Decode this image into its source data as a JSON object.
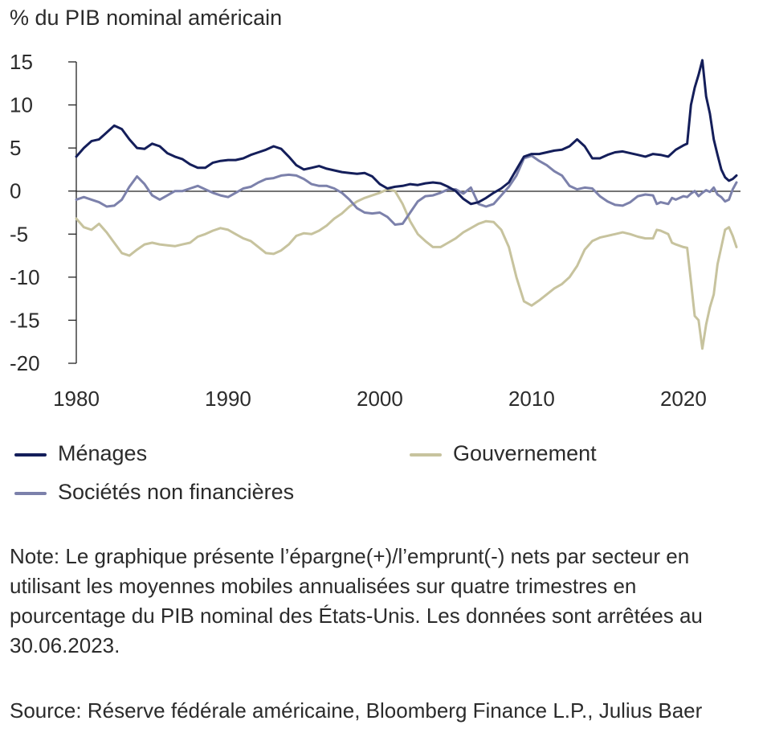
{
  "chart_data": {
    "type": "line",
    "ylabel": "% du PIB nominal américain",
    "ylim": [
      -20,
      15
    ],
    "xlim": [
      1980,
      2023.5
    ],
    "yticks": [
      "15",
      "10",
      "5",
      "0",
      "-5",
      "-10",
      "-15",
      "-20"
    ],
    "xticks": [
      "1980",
      "1990",
      "2000",
      "2010",
      "2020"
    ],
    "grid": false,
    "legend_position": "bottom",
    "series": [
      {
        "name": "Ménages",
        "color": "#141e5a",
        "points": [
          [
            1980,
            4.0
          ],
          [
            1980.5,
            5.0
          ],
          [
            1981,
            5.8
          ],
          [
            1981.5,
            6.0
          ],
          [
            1982,
            6.8
          ],
          [
            1982.5,
            7.6
          ],
          [
            1983,
            7.2
          ],
          [
            1983.5,
            6.0
          ],
          [
            1984,
            5.0
          ],
          [
            1984.5,
            4.9
          ],
          [
            1985,
            5.5
          ],
          [
            1985.5,
            5.2
          ],
          [
            1986,
            4.4
          ],
          [
            1986.5,
            4.0
          ],
          [
            1987,
            3.7
          ],
          [
            1987.5,
            3.1
          ],
          [
            1988,
            2.7
          ],
          [
            1988.5,
            2.7
          ],
          [
            1989,
            3.3
          ],
          [
            1989.5,
            3.5
          ],
          [
            1990,
            3.6
          ],
          [
            1990.5,
            3.6
          ],
          [
            1991,
            3.8
          ],
          [
            1991.5,
            4.2
          ],
          [
            1992,
            4.5
          ],
          [
            1992.5,
            4.8
          ],
          [
            1993,
            5.2
          ],
          [
            1993.5,
            4.9
          ],
          [
            1994,
            4.0
          ],
          [
            1994.5,
            3.0
          ],
          [
            1995,
            2.5
          ],
          [
            1995.5,
            2.7
          ],
          [
            1996,
            2.9
          ],
          [
            1996.5,
            2.6
          ],
          [
            1997,
            2.4
          ],
          [
            1997.5,
            2.2
          ],
          [
            1998,
            2.1
          ],
          [
            1998.5,
            2.0
          ],
          [
            1999,
            2.1
          ],
          [
            1999.5,
            1.7
          ],
          [
            2000,
            0.8
          ],
          [
            2000.5,
            0.3
          ],
          [
            2001,
            0.5
          ],
          [
            2001.5,
            0.6
          ],
          [
            2002,
            0.8
          ],
          [
            2002.5,
            0.7
          ],
          [
            2003,
            0.9
          ],
          [
            2003.5,
            1.0
          ],
          [
            2004,
            0.9
          ],
          [
            2004.5,
            0.5
          ],
          [
            2005,
            0.0
          ],
          [
            2005.5,
            -0.9
          ],
          [
            2006,
            -1.5
          ],
          [
            2006.5,
            -1.3
          ],
          [
            2007,
            -0.8
          ],
          [
            2007.5,
            -0.2
          ],
          [
            2008,
            0.3
          ],
          [
            2008.5,
            1.0
          ],
          [
            2009,
            2.5
          ],
          [
            2009.5,
            4.0
          ],
          [
            2010,
            4.3
          ],
          [
            2010.5,
            4.3
          ],
          [
            2011,
            4.5
          ],
          [
            2011.5,
            4.7
          ],
          [
            2012,
            4.8
          ],
          [
            2012.5,
            5.2
          ],
          [
            2013,
            6.0
          ],
          [
            2013.5,
            5.2
          ],
          [
            2014,
            3.8
          ],
          [
            2014.5,
            3.8
          ],
          [
            2015,
            4.2
          ],
          [
            2015.5,
            4.5
          ],
          [
            2016,
            4.6
          ],
          [
            2016.5,
            4.4
          ],
          [
            2017,
            4.2
          ],
          [
            2017.5,
            4.0
          ],
          [
            2018,
            4.3
          ],
          [
            2018.5,
            4.2
          ],
          [
            2019,
            4.0
          ],
          [
            2019.5,
            4.8
          ],
          [
            2020,
            5.3
          ],
          [
            2020.25,
            5.5
          ],
          [
            2020.5,
            10.0
          ],
          [
            2020.75,
            12.0
          ],
          [
            2021,
            13.5
          ],
          [
            2021.25,
            15.2
          ],
          [
            2021.5,
            11.0
          ],
          [
            2021.75,
            9.0
          ],
          [
            2022,
            6.0
          ],
          [
            2022.25,
            4.2
          ],
          [
            2022.5,
            2.5
          ],
          [
            2022.75,
            1.6
          ],
          [
            2023,
            1.2
          ],
          [
            2023.25,
            1.4
          ],
          [
            2023.5,
            1.8
          ]
        ]
      },
      {
        "name": "Gouvernement",
        "color": "#c7c39e",
        "points": [
          [
            1980,
            -3.2
          ],
          [
            1980.5,
            -4.2
          ],
          [
            1981,
            -4.5
          ],
          [
            1981.5,
            -3.8
          ],
          [
            1982,
            -4.8
          ],
          [
            1982.5,
            -6.0
          ],
          [
            1983,
            -7.2
          ],
          [
            1983.5,
            -7.5
          ],
          [
            1984,
            -6.8
          ],
          [
            1984.5,
            -6.2
          ],
          [
            1985,
            -6.0
          ],
          [
            1985.5,
            -6.2
          ],
          [
            1986,
            -6.3
          ],
          [
            1986.5,
            -6.4
          ],
          [
            1987,
            -6.2
          ],
          [
            1987.5,
            -6.0
          ],
          [
            1988,
            -5.3
          ],
          [
            1988.5,
            -5.0
          ],
          [
            1989,
            -4.6
          ],
          [
            1989.5,
            -4.3
          ],
          [
            1990,
            -4.5
          ],
          [
            1990.5,
            -5.0
          ],
          [
            1991,
            -5.5
          ],
          [
            1991.5,
            -5.8
          ],
          [
            1992,
            -6.5
          ],
          [
            1992.5,
            -7.2
          ],
          [
            1993,
            -7.3
          ],
          [
            1993.5,
            -6.9
          ],
          [
            1994,
            -6.2
          ],
          [
            1994.5,
            -5.2
          ],
          [
            1995,
            -4.9
          ],
          [
            1995.5,
            -5.0
          ],
          [
            1996,
            -4.6
          ],
          [
            1996.5,
            -4.0
          ],
          [
            1997,
            -3.2
          ],
          [
            1997.5,
            -2.6
          ],
          [
            1998,
            -1.8
          ],
          [
            1998.5,
            -1.2
          ],
          [
            1999,
            -0.8
          ],
          [
            1999.5,
            -0.5
          ],
          [
            2000,
            -0.2
          ],
          [
            2000.5,
            0.2
          ],
          [
            2001,
            0.0
          ],
          [
            2001.5,
            -1.5
          ],
          [
            2002,
            -3.5
          ],
          [
            2002.5,
            -5.0
          ],
          [
            2003,
            -5.8
          ],
          [
            2003.5,
            -6.5
          ],
          [
            2004,
            -6.5
          ],
          [
            2004.5,
            -6.0
          ],
          [
            2005,
            -5.5
          ],
          [
            2005.5,
            -4.8
          ],
          [
            2006,
            -4.3
          ],
          [
            2006.5,
            -3.8
          ],
          [
            2007,
            -3.5
          ],
          [
            2007.5,
            -3.6
          ],
          [
            2008,
            -4.5
          ],
          [
            2008.5,
            -6.5
          ],
          [
            2009,
            -10.0
          ],
          [
            2009.5,
            -12.8
          ],
          [
            2010,
            -13.3
          ],
          [
            2010.5,
            -12.7
          ],
          [
            2011,
            -12.0
          ],
          [
            2011.5,
            -11.3
          ],
          [
            2012,
            -10.8
          ],
          [
            2012.5,
            -10.0
          ],
          [
            2013,
            -8.7
          ],
          [
            2013.5,
            -6.8
          ],
          [
            2014,
            -5.8
          ],
          [
            2014.5,
            -5.4
          ],
          [
            2015,
            -5.2
          ],
          [
            2015.5,
            -5.0
          ],
          [
            2016,
            -4.8
          ],
          [
            2016.5,
            -5.0
          ],
          [
            2017,
            -5.3
          ],
          [
            2017.5,
            -5.5
          ],
          [
            2018,
            -5.5
          ],
          [
            2018.25,
            -4.5
          ],
          [
            2018.5,
            -4.6
          ],
          [
            2019,
            -5.0
          ],
          [
            2019.25,
            -6.0
          ],
          [
            2019.5,
            -6.2
          ],
          [
            2020,
            -6.5
          ],
          [
            2020.25,
            -6.6
          ],
          [
            2020.5,
            -10.5
          ],
          [
            2020.75,
            -14.5
          ],
          [
            2021,
            -15.0
          ],
          [
            2021.25,
            -18.3
          ],
          [
            2021.5,
            -15.5
          ],
          [
            2021.75,
            -13.5
          ],
          [
            2022,
            -12.0
          ],
          [
            2022.25,
            -8.5
          ],
          [
            2022.5,
            -6.5
          ],
          [
            2022.75,
            -4.5
          ],
          [
            2023,
            -4.2
          ],
          [
            2023.25,
            -5.2
          ],
          [
            2023.5,
            -6.5
          ]
        ]
      },
      {
        "name": "Sociétés non financières",
        "color": "#7c81ab",
        "points": [
          [
            1980,
            -1.0
          ],
          [
            1980.5,
            -0.7
          ],
          [
            1981,
            -1.0
          ],
          [
            1981.5,
            -1.3
          ],
          [
            1982,
            -1.8
          ],
          [
            1982.5,
            -1.7
          ],
          [
            1983,
            -1.0
          ],
          [
            1983.5,
            0.5
          ],
          [
            1984,
            1.7
          ],
          [
            1984.5,
            0.8
          ],
          [
            1985,
            -0.5
          ],
          [
            1985.5,
            -1.0
          ],
          [
            1986,
            -0.5
          ],
          [
            1986.5,
            0.0
          ],
          [
            1987,
            0.0
          ],
          [
            1987.5,
            0.3
          ],
          [
            1988,
            0.6
          ],
          [
            1988.5,
            0.2
          ],
          [
            1989,
            -0.2
          ],
          [
            1989.5,
            -0.5
          ],
          [
            1990,
            -0.7
          ],
          [
            1990.5,
            -0.2
          ],
          [
            1991,
            0.3
          ],
          [
            1991.5,
            0.5
          ],
          [
            1992,
            1.0
          ],
          [
            1992.5,
            1.4
          ],
          [
            1993,
            1.5
          ],
          [
            1993.5,
            1.8
          ],
          [
            1994,
            1.9
          ],
          [
            1994.5,
            1.8
          ],
          [
            1995,
            1.4
          ],
          [
            1995.5,
            0.8
          ],
          [
            1996,
            0.6
          ],
          [
            1996.5,
            0.6
          ],
          [
            1997,
            0.3
          ],
          [
            1997.5,
            -0.2
          ],
          [
            1998,
            -1.0
          ],
          [
            1998.5,
            -2.0
          ],
          [
            1999,
            -2.5
          ],
          [
            1999.5,
            -2.6
          ],
          [
            2000,
            -2.5
          ],
          [
            2000.5,
            -3.0
          ],
          [
            2001,
            -3.9
          ],
          [
            2001.5,
            -3.8
          ],
          [
            2002,
            -2.5
          ],
          [
            2002.5,
            -1.2
          ],
          [
            2003,
            -0.6
          ],
          [
            2003.5,
            -0.5
          ],
          [
            2004,
            -0.2
          ],
          [
            2004.5,
            0.2
          ],
          [
            2005,
            0.2
          ],
          [
            2005.5,
            -0.3
          ],
          [
            2006,
            0.4
          ],
          [
            2006.5,
            -1.5
          ],
          [
            2007,
            -1.8
          ],
          [
            2007.5,
            -1.5
          ],
          [
            2008,
            -0.5
          ],
          [
            2008.5,
            0.5
          ],
          [
            2009,
            1.8
          ],
          [
            2009.5,
            3.8
          ],
          [
            2010,
            4.1
          ],
          [
            2010.5,
            3.5
          ],
          [
            2011,
            3.0
          ],
          [
            2011.5,
            2.3
          ],
          [
            2012,
            1.8
          ],
          [
            2012.5,
            0.6
          ],
          [
            2013,
            0.2
          ],
          [
            2013.5,
            0.4
          ],
          [
            2014,
            0.3
          ],
          [
            2014.5,
            -0.6
          ],
          [
            2015,
            -1.2
          ],
          [
            2015.5,
            -1.6
          ],
          [
            2016,
            -1.7
          ],
          [
            2016.5,
            -1.3
          ],
          [
            2017,
            -0.6
          ],
          [
            2017.5,
            -0.4
          ],
          [
            2018,
            -0.5
          ],
          [
            2018.25,
            -1.5
          ],
          [
            2018.5,
            -1.3
          ],
          [
            2019,
            -1.5
          ],
          [
            2019.25,
            -0.8
          ],
          [
            2019.5,
            -1.0
          ],
          [
            2020,
            -0.6
          ],
          [
            2020.25,
            -0.7
          ],
          [
            2020.5,
            -0.3
          ],
          [
            2020.75,
            0.0
          ],
          [
            2021,
            -0.6
          ],
          [
            2021.25,
            -0.2
          ],
          [
            2021.5,
            0.1
          ],
          [
            2021.75,
            -0.1
          ],
          [
            2022,
            0.4
          ],
          [
            2022.25,
            -0.4
          ],
          [
            2022.5,
            -0.7
          ],
          [
            2022.75,
            -1.2
          ],
          [
            2023,
            -1.0
          ],
          [
            2023.25,
            0.2
          ],
          [
            2023.5,
            1.0
          ]
        ]
      }
    ]
  },
  "legend": {
    "menages": "Ménages",
    "gouvernement": "Gouvernement",
    "societes": "Sociétés non financières",
    "colors": {
      "menages": "#141e5a",
      "gouvernement": "#c7c39e",
      "societes": "#7c81ab"
    }
  },
  "note": "Note: Le graphique présente l’épargne(+)/l’emprunt(-) nets par secteur en utilisant les moyennes mobiles annualisées sur quatre trimestres en pourcentage du PIB nominal des États-Unis. Les données sont arrêtées au 30.06.2023.",
  "source": "Source: Réserve fédérale américaine, Bloomberg Finance L.P., Julius Baer"
}
